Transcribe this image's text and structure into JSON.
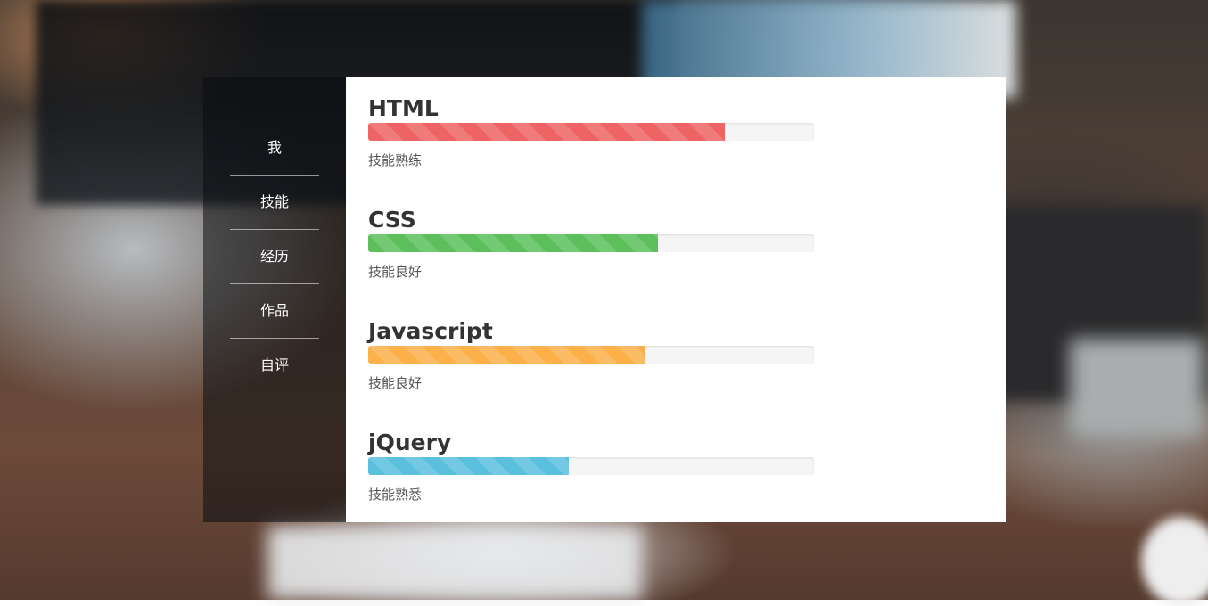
{
  "nav": {
    "items": [
      {
        "label": "我"
      },
      {
        "label": "技能"
      },
      {
        "label": "经历"
      },
      {
        "label": "作品"
      },
      {
        "label": "自评"
      }
    ]
  },
  "skills": [
    {
      "name": "HTML",
      "level": 0.8,
      "desc": "技能熟练",
      "color": "#ee6363"
    },
    {
      "name": "CSS",
      "level": 0.65,
      "desc": "技能良好",
      "color": "#5cbf5c"
    },
    {
      "name": "Javascript",
      "level": 0.62,
      "desc": "技能良好",
      "color": "#fbb04a"
    },
    {
      "name": "jQuery",
      "level": 0.45,
      "desc": "技能熟悉",
      "color": "#5bc0de"
    }
  ]
}
